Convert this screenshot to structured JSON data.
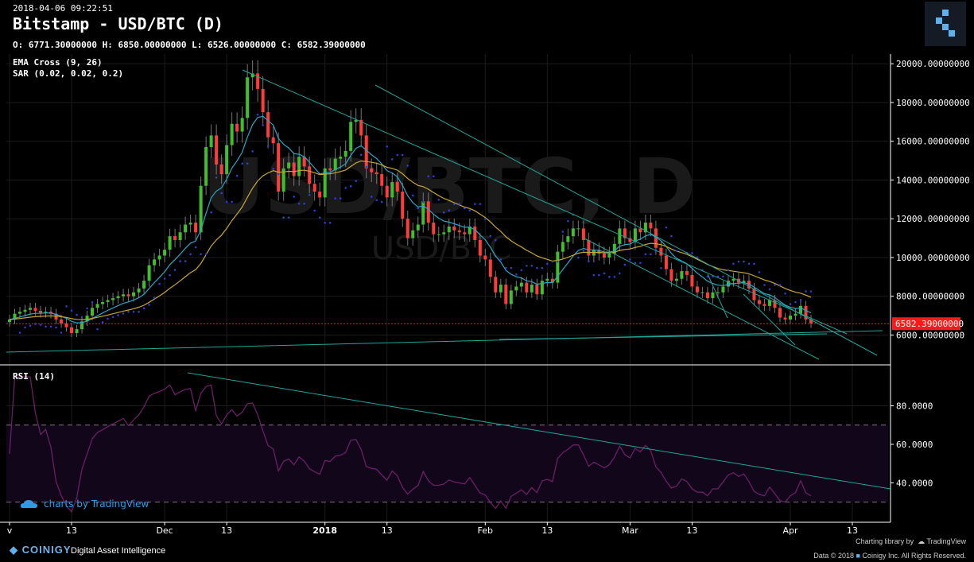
{
  "header": {
    "timestamp": "2018-04-06 09:22:51",
    "title": "Bitstamp - USD/BTC (D)",
    "ohlc": "O: 6771.30000000 H: 6850.00000000 L: 6526.00000000 C: 6582.39000000",
    "indicator_1": "EMA Cross (9, 26)",
    "indicator_2": "SAR (0.02, 0.02, 0.2)",
    "rsi_label": "RSI (14)",
    "watermark_big": "USD/BTC, D",
    "watermark_small": "USD/BTC"
  },
  "branding": {
    "tv_chip": "charts by TradingView",
    "coinigy": "COINIGY",
    "tagline": "Digital Asset Intelligence",
    "charting_library": "Charting library by",
    "tradingview": "TradingView",
    "copyright": "Data © 2018",
    "copyright_2": "Coinigy Inc. All Rights Reserved."
  },
  "colors": {
    "up": "#3fbf2a",
    "down": "#ff3b3b",
    "ema_fast": "#2aa6c7",
    "ema_slow": "#c8a82e",
    "sar": "#2b3fd1",
    "trend": "#1ea79a",
    "rsi": "#6b1f66",
    "price_tag": "#ff1a1a"
  },
  "chart_data": {
    "type": "candlestick",
    "symbol": "USD/BTC",
    "exchange": "Bitstamp",
    "interval": "D",
    "price_axis": {
      "range": [
        4500,
        20500
      ],
      "ticks": [
        "20000.00000000",
        "18000.00000000",
        "16000.00000000",
        "14000.00000000",
        "12000.00000000",
        "10000.00000000",
        "8000.00000000",
        "6000.00000000"
      ],
      "tick_values": [
        20000,
        18000,
        16000,
        14000,
        12000,
        10000,
        8000,
        6000
      ],
      "last_price_label": "6582.39000000",
      "last_price": 6582.39
    },
    "rsi_axis": {
      "range": [
        20,
        100
      ],
      "ticks": [
        "80.0000",
        "60.0000",
        "40.0000"
      ],
      "tick_values": [
        80,
        60,
        40
      ],
      "bands": [
        70,
        30
      ]
    },
    "time_axis_labels": [
      "v",
      "13",
      "Dec",
      "13",
      "2018",
      "13",
      "Feb",
      "13",
      "Mar",
      "13",
      "Apr",
      "13"
    ],
    "time_axis_index": [
      0,
      12,
      30,
      42,
      61,
      73,
      92,
      104,
      120,
      132,
      151,
      163
    ],
    "closes": [
      6800,
      7100,
      7200,
      7300,
      7400,
      7250,
      7150,
      7200,
      7100,
      6800,
      6600,
      6400,
      6100,
      6300,
      6700,
      7000,
      7400,
      7600,
      7700,
      7800,
      7900,
      8000,
      8100,
      8000,
      8200,
      8400,
      8800,
      9600,
      9900,
      10100,
      10400,
      11100,
      10900,
      11300,
      11700,
      11800,
      11300,
      13700,
      15700,
      16300,
      14800,
      14300,
      15800,
      16900,
      16500,
      17200,
      19300,
      19500,
      18700,
      17500,
      16200,
      15900,
      13400,
      14600,
      14900,
      14200,
      15200,
      14700,
      13800,
      13400,
      13100,
      14600,
      14500,
      15100,
      15200,
      15500,
      17000,
      17100,
      16300,
      14600,
      14400,
      14300,
      13700,
      13100,
      13900,
      13400,
      12000,
      11000,
      11400,
      11700,
      12900,
      11800,
      11200,
      11200,
      11300,
      11600,
      11400,
      11300,
      11200,
      11600,
      10900,
      10100,
      9900,
      9000,
      8200,
      8600,
      7600,
      8300,
      8500,
      8700,
      8200,
      8600,
      8100,
      8800,
      8900,
      8700,
      10300,
      10800,
      11100,
      11500,
      11500,
      10900,
      10100,
      10400,
      10200,
      10000,
      10200,
      10700,
      11500,
      11000,
      10800,
      11500,
      11300,
      11800,
      11500,
      10500,
      10100,
      9400,
      8800,
      8900,
      9300,
      9100,
      8500,
      8200,
      8200,
      7900,
      8200,
      8200,
      8500,
      8800,
      8900,
      8700,
      8800,
      8400,
      7800,
      7600,
      7500,
      7800,
      7400,
      6900,
      6800,
      7000,
      7100,
      7500,
      6800,
      6600
    ],
    "ema_fast": "EMA 9",
    "ema_slow": "EMA 26"
  }
}
